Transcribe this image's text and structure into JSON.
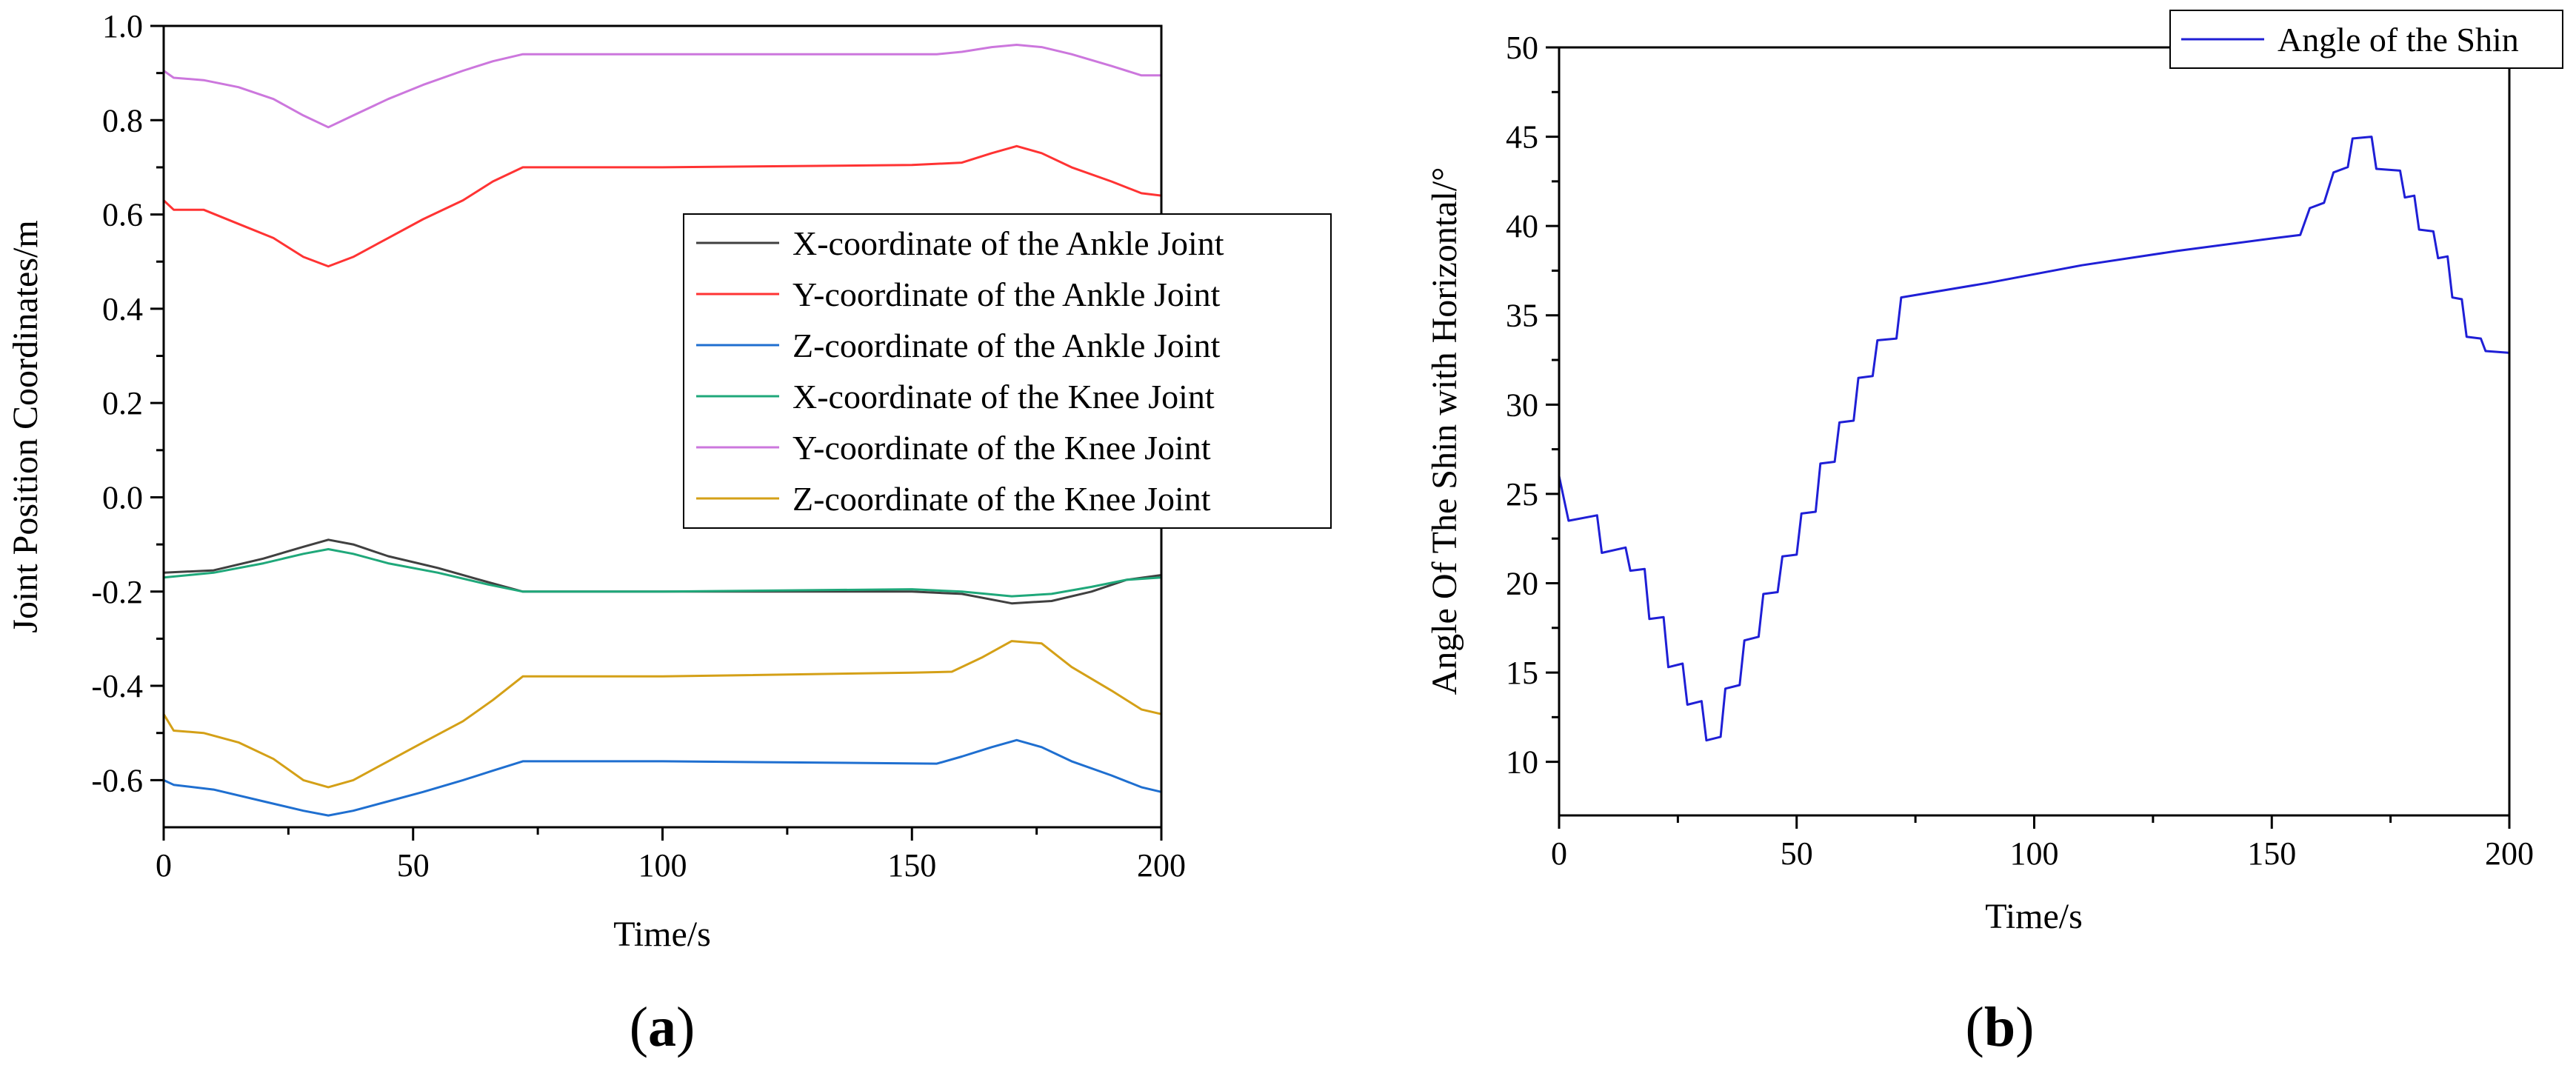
{
  "chart_data": [
    {
      "panel": "(a)",
      "panel_paren_open": "(",
      "panel_letter": "a",
      "panel_paren_close": ")",
      "type": "line",
      "title": "",
      "xlabel": "Time/s",
      "ylabel": "Joint Position Coordinates/m",
      "xlim": [
        0,
        200
      ],
      "ylim": [
        -0.7,
        1.0
      ],
      "xticks": [
        "0",
        "50",
        "100",
        "150",
        "200"
      ],
      "yticks": [
        "-0.6",
        "-0.4",
        "-0.2",
        "0.0",
        "0.2",
        "0.4",
        "0.6",
        "0.8",
        "1.0"
      ],
      "grid": false,
      "legend": "center-right",
      "series": [
        {
          "name": "X-coordinate of the Ankle Joint",
          "color": "#404040",
          "points": [
            [
              0,
              -0.16
            ],
            [
              10,
              -0.155
            ],
            [
              20,
              -0.13
            ],
            [
              28,
              -0.105
            ],
            [
              33,
              -0.09
            ],
            [
              38,
              -0.1
            ],
            [
              45,
              -0.125
            ],
            [
              55,
              -0.15
            ],
            [
              65,
              -0.18
            ],
            [
              72,
              -0.2
            ],
            [
              100,
              -0.2
            ],
            [
              150,
              -0.2
            ],
            [
              160,
              -0.205
            ],
            [
              170,
              -0.225
            ],
            [
              178,
              -0.22
            ],
            [
              186,
              -0.2
            ],
            [
              193,
              -0.175
            ],
            [
              200,
              -0.165
            ]
          ]
        },
        {
          "name": "Y-coordinate of the Ankle Joint",
          "color": "#ff3333",
          "points": [
            [
              0,
              0.63
            ],
            [
              2,
              0.61
            ],
            [
              8,
              0.61
            ],
            [
              15,
              0.58
            ],
            [
              22,
              0.55
            ],
            [
              28,
              0.51
            ],
            [
              33,
              0.49
            ],
            [
              38,
              0.51
            ],
            [
              45,
              0.55
            ],
            [
              52,
              0.59
            ],
            [
              60,
              0.63
            ],
            [
              66,
              0.67
            ],
            [
              72,
              0.7
            ],
            [
              100,
              0.7
            ],
            [
              150,
              0.705
            ],
            [
              160,
              0.71
            ],
            [
              166,
              0.73
            ],
            [
              171,
              0.745
            ],
            [
              176,
              0.73
            ],
            [
              182,
              0.7
            ],
            [
              190,
              0.67
            ],
            [
              196,
              0.645
            ],
            [
              200,
              0.64
            ]
          ]
        },
        {
          "name": "Z-coordinate of the Ankle Joint",
          "color": "#1f6fd0",
          "points": [
            [
              0,
              -0.6
            ],
            [
              2,
              -0.61
            ],
            [
              10,
              -0.62
            ],
            [
              20,
              -0.645
            ],
            [
              28,
              -0.665
            ],
            [
              33,
              -0.675
            ],
            [
              38,
              -0.665
            ],
            [
              45,
              -0.645
            ],
            [
              52,
              -0.625
            ],
            [
              60,
              -0.6
            ],
            [
              66,
              -0.58
            ],
            [
              72,
              -0.56
            ],
            [
              100,
              -0.56
            ],
            [
              155,
              -0.565
            ],
            [
              160,
              -0.55
            ],
            [
              166,
              -0.53
            ],
            [
              171,
              -0.515
            ],
            [
              176,
              -0.53
            ],
            [
              182,
              -0.56
            ],
            [
              190,
              -0.59
            ],
            [
              196,
              -0.615
            ],
            [
              200,
              -0.625
            ]
          ]
        },
        {
          "name": "X-coordinate of the Knee Joint",
          "color": "#1fa87a",
          "points": [
            [
              0,
              -0.17
            ],
            [
              10,
              -0.16
            ],
            [
              20,
              -0.14
            ],
            [
              28,
              -0.12
            ],
            [
              33,
              -0.11
            ],
            [
              38,
              -0.12
            ],
            [
              45,
              -0.14
            ],
            [
              55,
              -0.16
            ],
            [
              65,
              -0.185
            ],
            [
              72,
              -0.2
            ],
            [
              100,
              -0.2
            ],
            [
              150,
              -0.195
            ],
            [
              160,
              -0.2
            ],
            [
              170,
              -0.21
            ],
            [
              178,
              -0.205
            ],
            [
              186,
              -0.19
            ],
            [
              193,
              -0.175
            ],
            [
              200,
              -0.17
            ]
          ]
        },
        {
          "name": "Y-coordinate of the Knee Joint",
          "color": "#cc77dd",
          "points": [
            [
              0,
              0.905
            ],
            [
              2,
              0.89
            ],
            [
              8,
              0.885
            ],
            [
              15,
              0.87
            ],
            [
              22,
              0.845
            ],
            [
              28,
              0.81
            ],
            [
              33,
              0.785
            ],
            [
              38,
              0.81
            ],
            [
              45,
              0.845
            ],
            [
              52,
              0.875
            ],
            [
              60,
              0.905
            ],
            [
              66,
              0.925
            ],
            [
              72,
              0.94
            ],
            [
              100,
              0.94
            ],
            [
              155,
              0.94
            ],
            [
              160,
              0.945
            ],
            [
              166,
              0.955
            ],
            [
              171,
              0.96
            ],
            [
              176,
              0.955
            ],
            [
              182,
              0.94
            ],
            [
              190,
              0.915
            ],
            [
              196,
              0.895
            ],
            [
              200,
              0.895
            ]
          ]
        },
        {
          "name": "Z-coordinate of the Knee Joint",
          "color": "#d4a017",
          "points": [
            [
              0,
              -0.46
            ],
            [
              2,
              -0.495
            ],
            [
              8,
              -0.5
            ],
            [
              15,
              -0.52
            ],
            [
              22,
              -0.555
            ],
            [
              28,
              -0.6
            ],
            [
              33,
              -0.615
            ],
            [
              38,
              -0.6
            ],
            [
              45,
              -0.56
            ],
            [
              52,
              -0.52
            ],
            [
              60,
              -0.475
            ],
            [
              66,
              -0.43
            ],
            [
              72,
              -0.38
            ],
            [
              100,
              -0.38
            ],
            [
              150,
              -0.372
            ],
            [
              158,
              -0.37
            ],
            [
              164,
              -0.34
            ],
            [
              170,
              -0.305
            ],
            [
              176,
              -0.31
            ],
            [
              182,
              -0.36
            ],
            [
              190,
              -0.41
            ],
            [
              196,
              -0.45
            ],
            [
              200,
              -0.46
            ]
          ]
        }
      ]
    },
    {
      "panel": "(b)",
      "panel_paren_open": "(",
      "panel_letter": "b",
      "panel_paren_close": ")",
      "type": "line",
      "title": "",
      "xlabel": "Time/s",
      "ylabel": "Angle Of The Shin with Horizontal/°",
      "xlim": [
        0,
        200
      ],
      "ylim": [
        7,
        50
      ],
      "xticks": [
        "0",
        "50",
        "100",
        "150",
        "200"
      ],
      "yticks": [
        "10",
        "15",
        "20",
        "25",
        "30",
        "35",
        "40",
        "45",
        "50"
      ],
      "grid": false,
      "legend": "top-right",
      "series": [
        {
          "name": "Angle of the Shin",
          "color": "#1f1fd6",
          "points": [
            [
              0,
              26
            ],
            [
              2,
              23.5
            ],
            [
              8,
              23.8
            ],
            [
              9,
              21.7
            ],
            [
              14,
              22
            ],
            [
              15,
              20.7
            ],
            [
              18,
              20.8
            ],
            [
              19,
              18
            ],
            [
              22,
              18.1
            ],
            [
              23,
              15.3
            ],
            [
              26,
              15.5
            ],
            [
              27,
              13.2
            ],
            [
              30,
              13.4
            ],
            [
              31,
              11.2
            ],
            [
              34,
              11.4
            ],
            [
              35,
              14.1
            ],
            [
              38,
              14.3
            ],
            [
              39,
              16.8
            ],
            [
              42,
              17
            ],
            [
              43,
              19.4
            ],
            [
              46,
              19.5
            ],
            [
              47,
              21.5
            ],
            [
              50,
              21.6
            ],
            [
              51,
              23.9
            ],
            [
              54,
              24
            ],
            [
              55,
              26.7
            ],
            [
              58,
              26.8
            ],
            [
              59,
              29
            ],
            [
              62,
              29.1
            ],
            [
              63,
              31.5
            ],
            [
              66,
              31.6
            ],
            [
              67,
              33.6
            ],
            [
              71,
              33.7
            ],
            [
              72,
              36
            ],
            [
              90,
              36.8
            ],
            [
              110,
              37.8
            ],
            [
              130,
              38.6
            ],
            [
              150,
              39.3
            ],
            [
              156,
              39.5
            ],
            [
              158,
              41
            ],
            [
              161,
              41.3
            ],
            [
              163,
              43
            ],
            [
              166,
              43.3
            ],
            [
              167,
              44.9
            ],
            [
              171,
              45
            ],
            [
              172,
              43.2
            ],
            [
              177,
              43.1
            ],
            [
              178,
              41.6
            ],
            [
              180,
              41.7
            ],
            [
              181,
              39.8
            ],
            [
              184,
              39.7
            ],
            [
              185,
              38.2
            ],
            [
              187,
              38.3
            ],
            [
              188,
              36
            ],
            [
              190,
              35.9
            ],
            [
              191,
              33.8
            ],
            [
              194,
              33.7
            ],
            [
              195,
              33
            ],
            [
              200,
              32.9
            ]
          ]
        }
      ]
    }
  ]
}
